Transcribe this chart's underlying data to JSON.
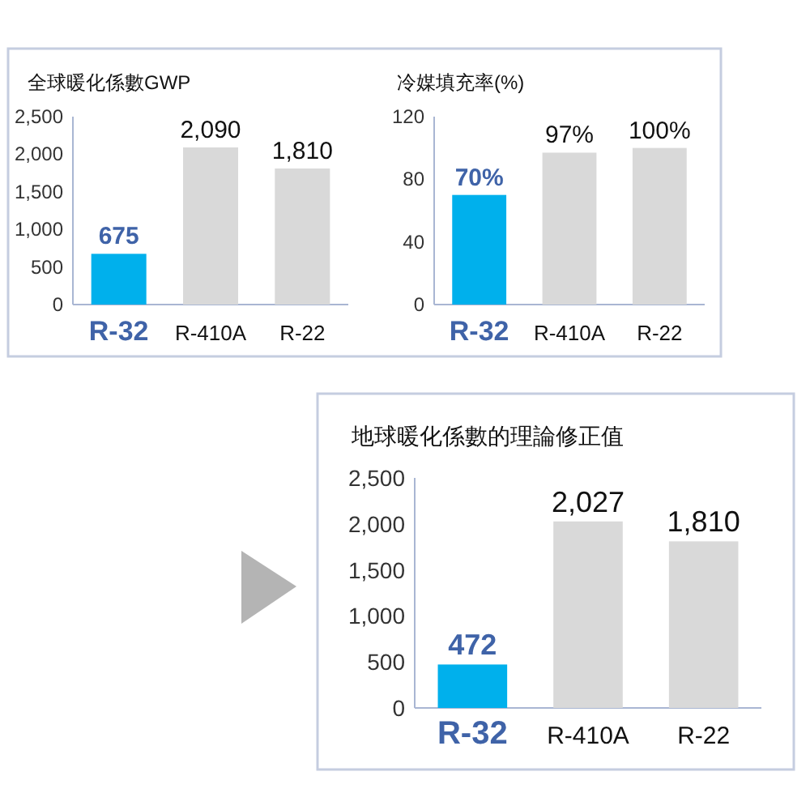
{
  "chart_data": [
    {
      "type": "bar",
      "title": "全球暖化係數GWP",
      "categories": [
        "R-32",
        "R-410A",
        "R-22"
      ],
      "values": [
        675,
        2090,
        1810
      ],
      "colors": [
        "#00b0ec",
        "#d9d9d9",
        "#d9d9d9"
      ],
      "value_labels": [
        "675",
        "2,090",
        "1,810"
      ],
      "ylim": [
        0,
        2500
      ],
      "yticks": [
        0,
        500,
        {
          "value": 1000,
          "label": "1,000"
        },
        {
          "value": 1500,
          "label": "1,500"
        },
        {
          "value": 2000,
          "label": "2,000"
        },
        {
          "value": 2500,
          "label": "2,500"
        }
      ]
    },
    {
      "type": "bar",
      "title": "冷媒填充率(%)",
      "categories": [
        "R-32",
        "R-410A",
        "R-22"
      ],
      "values": [
        70,
        97,
        100
      ],
      "colors": [
        "#00b0ec",
        "#d9d9d9",
        "#d9d9d9"
      ],
      "value_labels": [
        "70%",
        "97%",
        "100%"
      ],
      "ylim": [
        0,
        120
      ],
      "yticks": [
        0,
        40,
        80,
        120
      ]
    },
    {
      "type": "bar",
      "title": "地球暖化係數的理論修正值",
      "categories": [
        "R-32",
        "R-410A",
        "R-22"
      ],
      "values": [
        472,
        2027,
        1810
      ],
      "colors": [
        "#00b0ec",
        "#d9d9d9",
        "#d9d9d9"
      ],
      "value_labels": [
        "472",
        "2,027",
        "1,810"
      ],
      "ylim": [
        0,
        2500
      ],
      "yticks": [
        0,
        500,
        {
          "value": 1000,
          "label": "1,000"
        },
        {
          "value": 1500,
          "label": "1,500"
        },
        {
          "value": 2000,
          "label": "2,000"
        },
        {
          "value": 2500,
          "label": "2,500"
        }
      ]
    }
  ]
}
